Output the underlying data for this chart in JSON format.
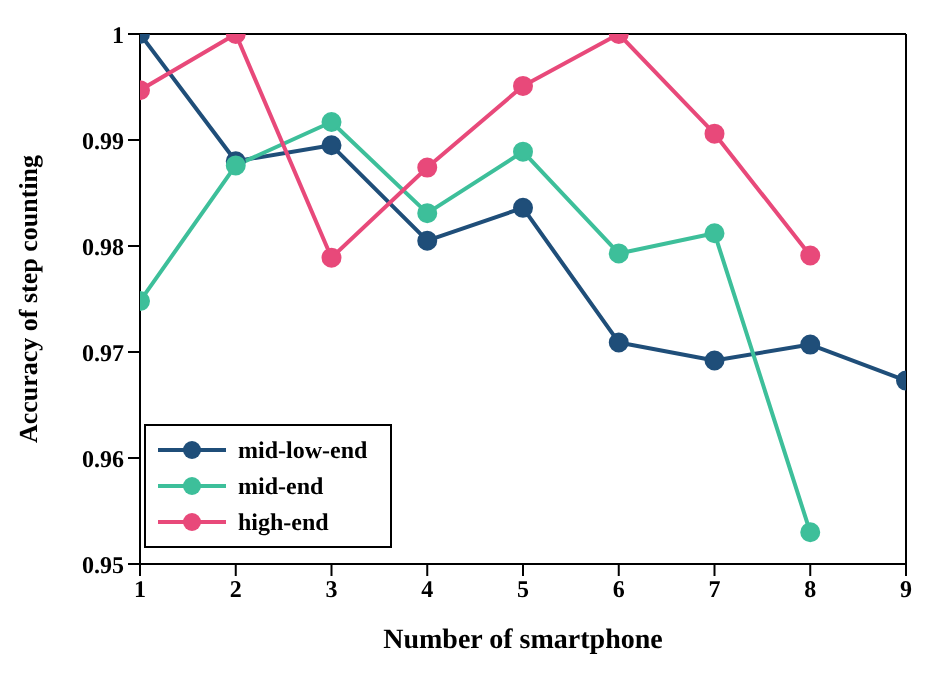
{
  "chart_data": {
    "type": "line",
    "xlabel": "Number of smartphone",
    "ylabel": "Accuracy of step counting",
    "x": [
      1,
      2,
      3,
      4,
      5,
      6,
      7,
      8,
      9
    ],
    "series": [
      {
        "name": "mid-low-end",
        "color": "#1f4e79",
        "values": [
          1.0,
          0.988,
          0.9895,
          0.9805,
          0.9836,
          0.9709,
          0.9692,
          0.9707,
          0.9673
        ]
      },
      {
        "name": "mid-end",
        "color": "#3dbf9a",
        "values": [
          0.9748,
          0.9876,
          0.9917,
          0.9831,
          0.9889,
          0.9793,
          0.9812,
          0.953,
          null
        ]
      },
      {
        "name": "high-end",
        "color": "#e8497a",
        "values": [
          0.9947,
          1.0,
          0.9789,
          0.9874,
          0.9951,
          1.0,
          0.9906,
          0.9791,
          null
        ]
      }
    ],
    "xlim": [
      1,
      9
    ],
    "xticks": [
      1,
      2,
      3,
      4,
      5,
      6,
      7,
      8,
      9
    ],
    "ylim": [
      0.95,
      1
    ],
    "yticks": [
      0.95,
      0.96,
      0.97,
      0.98,
      0.99,
      1
    ],
    "grid": false,
    "legend": "bottom left",
    "marker": "circle",
    "line_style": "solid"
  }
}
